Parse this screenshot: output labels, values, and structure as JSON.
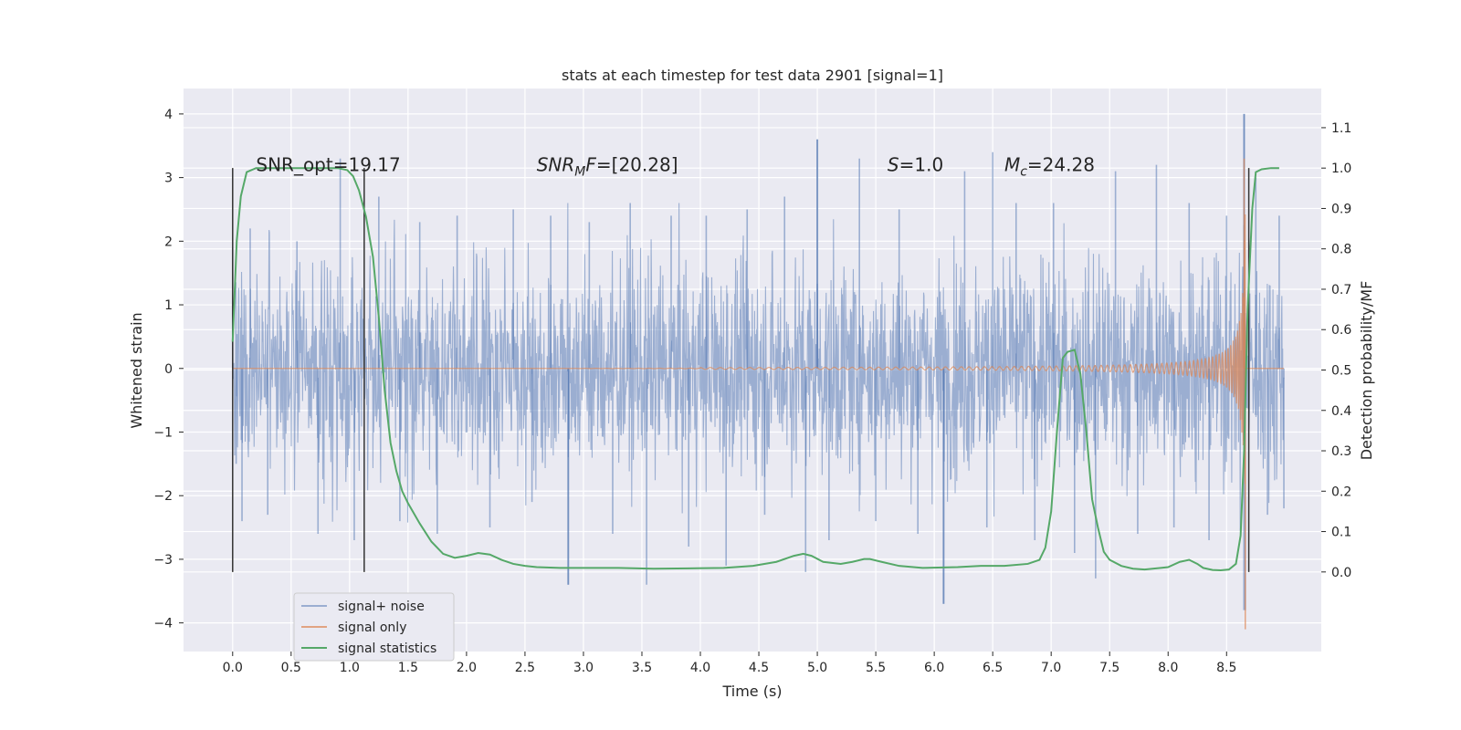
{
  "chart_data": {
    "type": "line",
    "title": "stats at each timestep for test data 2901 [signal=1]",
    "xlabel": "Time (s)",
    "ylabel": "Whitened strain",
    "y2label": "Detection probability/MF",
    "xlim": [
      -0.42,
      9.31
    ],
    "ylim": [
      -4.45,
      4.4
    ],
    "y2lim": [
      -0.197,
      1.197
    ],
    "xticks": [
      0.0,
      0.5,
      1.0,
      1.5,
      2.0,
      2.5,
      3.0,
      3.5,
      4.0,
      4.5,
      5.0,
      5.5,
      6.0,
      6.5,
      7.0,
      7.5,
      8.0,
      8.5
    ],
    "xtick_labels": [
      "0.0",
      "0.5",
      "1.0",
      "1.5",
      "2.0",
      "2.5",
      "3.0",
      "3.5",
      "4.0",
      "4.5",
      "5.0",
      "5.5",
      "6.0",
      "6.5",
      "7.0",
      "7.5",
      "8.0",
      "8.5"
    ],
    "yticks": [
      4,
      3,
      2,
      1,
      0,
      -1,
      -2,
      -3,
      -4
    ],
    "ytick_labels": [
      "4",
      "3",
      "2",
      "1",
      "0",
      "−1",
      "−2",
      "−3",
      "−4"
    ],
    "y2ticks": [
      1.1,
      1.0,
      0.9,
      0.8,
      0.7,
      0.6,
      0.5,
      0.4,
      0.3,
      0.2,
      0.1,
      0.0
    ],
    "y2tick_labels": [
      "1.1",
      "1.0",
      "0.9",
      "0.8",
      "0.7",
      "0.6",
      "0.5",
      "0.4",
      "0.3",
      "0.2",
      "0.1",
      "0.0"
    ],
    "grid": true,
    "legend_position": "lower-left",
    "background": "#eaeaf2",
    "series": [
      {
        "name": "signal+ noise",
        "axis": "left",
        "color": "#4c72b0",
        "opacity": 0.5,
        "x_range": [
          0.0,
          8.99
        ],
        "approx_envelope": [
          -2.0,
          2.6
        ],
        "peak_values": [
          [
            8.65,
            4.0
          ],
          [
            8.65,
            -3.8
          ],
          [
            2.87,
            -3.4
          ],
          [
            5.0,
            3.6
          ],
          [
            6.08,
            -3.7
          ]
        ],
        "spikes": [
          [
            0.0,
            1.9
          ],
          [
            0.03,
            -1.5
          ],
          [
            0.08,
            -2.4
          ],
          [
            0.15,
            2.2
          ],
          [
            0.3,
            -2.3
          ],
          [
            0.55,
            2.0
          ],
          [
            0.73,
            -2.6
          ],
          [
            0.92,
            3.3
          ],
          [
            1.04,
            -2.7
          ],
          [
            1.25,
            2.7
          ],
          [
            1.43,
            -2.4
          ],
          [
            1.6,
            2.3
          ],
          [
            1.75,
            -2.6
          ],
          [
            1.92,
            2.4
          ],
          [
            2.2,
            -2.5
          ],
          [
            2.4,
            2.5
          ],
          [
            2.56,
            -2.1
          ],
          [
            2.72,
            2.4
          ],
          [
            2.87,
            -3.4
          ],
          [
            3.05,
            2.3
          ],
          [
            3.25,
            -2.6
          ],
          [
            3.4,
            2.6
          ],
          [
            3.54,
            -3.4
          ],
          [
            3.75,
            2.4
          ],
          [
            3.9,
            -2.8
          ],
          [
            4.05,
            2.4
          ],
          [
            4.22,
            -3.1
          ],
          [
            4.4,
            2.5
          ],
          [
            4.55,
            -2.3
          ],
          [
            4.72,
            2.7
          ],
          [
            4.9,
            -3.2
          ],
          [
            5.0,
            3.6
          ],
          [
            5.1,
            -2.7
          ],
          [
            5.36,
            3.3
          ],
          [
            5.5,
            -2.4
          ],
          [
            5.7,
            2.5
          ],
          [
            5.86,
            -2.6
          ],
          [
            6.08,
            -3.7
          ],
          [
            6.26,
            3.1
          ],
          [
            6.45,
            -2.5
          ],
          [
            6.5,
            3.4
          ],
          [
            6.7,
            2.6
          ],
          [
            6.86,
            -2.7
          ],
          [
            7.02,
            2.6
          ],
          [
            7.2,
            -2.9
          ],
          [
            7.38,
            -3.3
          ],
          [
            7.55,
            3.1
          ],
          [
            7.74,
            -2.6
          ],
          [
            7.9,
            3.2
          ],
          [
            8.05,
            -2.5
          ],
          [
            8.18,
            2.6
          ],
          [
            8.35,
            -2.7
          ],
          [
            8.5,
            2.4
          ],
          [
            8.65,
            4.0
          ],
          [
            8.66,
            -3.8
          ],
          [
            8.75,
            3.0
          ],
          [
            8.85,
            -2.3
          ],
          [
            8.95,
            2.4
          ],
          [
            8.99,
            -2.2
          ]
        ]
      },
      {
        "name": "signal only",
        "axis": "left",
        "color": "#dd8452",
        "opacity": 0.7,
        "x_range": [
          0.0,
          8.99
        ],
        "chirp_onset": 4.0,
        "merger_time": 8.66,
        "peak_values": [
          [
            8.65,
            3.3
          ],
          [
            8.66,
            -4.1
          ]
        ]
      },
      {
        "name": "signal statistics",
        "axis": "right",
        "color": "#55a868",
        "x": [
          0.0,
          0.035,
          0.07,
          0.12,
          0.2,
          0.3,
          0.5,
          0.7,
          0.9,
          0.98,
          1.03,
          1.08,
          1.14,
          1.2,
          1.25,
          1.3,
          1.35,
          1.4,
          1.45,
          1.5,
          1.6,
          1.7,
          1.8,
          1.9,
          2.0,
          2.1,
          2.2,
          2.3,
          2.4,
          2.5,
          2.6,
          2.8,
          3.0,
          3.3,
          3.6,
          3.9,
          4.2,
          4.45,
          4.65,
          4.8,
          4.88,
          4.95,
          5.05,
          5.2,
          5.3,
          5.4,
          5.45,
          5.55,
          5.7,
          5.9,
          6.2,
          6.4,
          6.6,
          6.8,
          6.9,
          6.95,
          7.0,
          7.05,
          7.1,
          7.14,
          7.2,
          7.25,
          7.3,
          7.35,
          7.4,
          7.45,
          7.5,
          7.6,
          7.7,
          7.8,
          8.0,
          8.1,
          8.18,
          8.25,
          8.3,
          8.38,
          8.45,
          8.52,
          8.58,
          8.62,
          8.65,
          8.68,
          8.72,
          8.75,
          8.8,
          8.88,
          8.95
        ],
        "y": [
          0.57,
          0.82,
          0.93,
          0.99,
          1.0,
          1.0,
          1.0,
          1.0,
          1.0,
          0.995,
          0.98,
          0.945,
          0.88,
          0.78,
          0.63,
          0.45,
          0.32,
          0.25,
          0.2,
          0.17,
          0.12,
          0.075,
          0.045,
          0.035,
          0.04,
          0.047,
          0.043,
          0.03,
          0.02,
          0.015,
          0.012,
          0.01,
          0.01,
          0.01,
          0.008,
          0.009,
          0.01,
          0.015,
          0.025,
          0.04,
          0.045,
          0.04,
          0.025,
          0.02,
          0.025,
          0.032,
          0.032,
          0.025,
          0.015,
          0.01,
          0.012,
          0.015,
          0.015,
          0.02,
          0.03,
          0.06,
          0.15,
          0.35,
          0.53,
          0.545,
          0.55,
          0.49,
          0.35,
          0.18,
          0.11,
          0.05,
          0.03,
          0.015,
          0.008,
          0.006,
          0.012,
          0.025,
          0.03,
          0.02,
          0.01,
          0.005,
          0.004,
          0.006,
          0.02,
          0.09,
          0.3,
          0.65,
          0.9,
          0.99,
          0.997,
          1.0,
          1.0
        ]
      }
    ],
    "vertical_markers": [
      {
        "x": 0.0,
        "y_range": [
          -3.2,
          3.15
        ],
        "color": "#333333"
      },
      {
        "x": 1.125,
        "y_range": [
          -3.2,
          3.15
        ],
        "color": "#333333"
      },
      {
        "x": 8.69,
        "y_range": [
          -3.2,
          3.15
        ],
        "color": "#333333"
      }
    ],
    "annotations": [
      {
        "id": "snr_opt",
        "text": "SNR_opt=19.17",
        "x": 0.2,
        "y": 3.1
      },
      {
        "id": "snr_mf",
        "base": "SNR",
        "sub": "M",
        "rest": "F=[20.28]",
        "x": 2.6,
        "y": 3.1
      },
      {
        "id": "s",
        "italic": "S",
        "rest": "=1.0",
        "x": 5.6,
        "y": 3.1
      },
      {
        "id": "mc",
        "base": "M",
        "sub": "c",
        "rest": "=24.28",
        "x": 6.6,
        "y": 3.1
      }
    ]
  }
}
